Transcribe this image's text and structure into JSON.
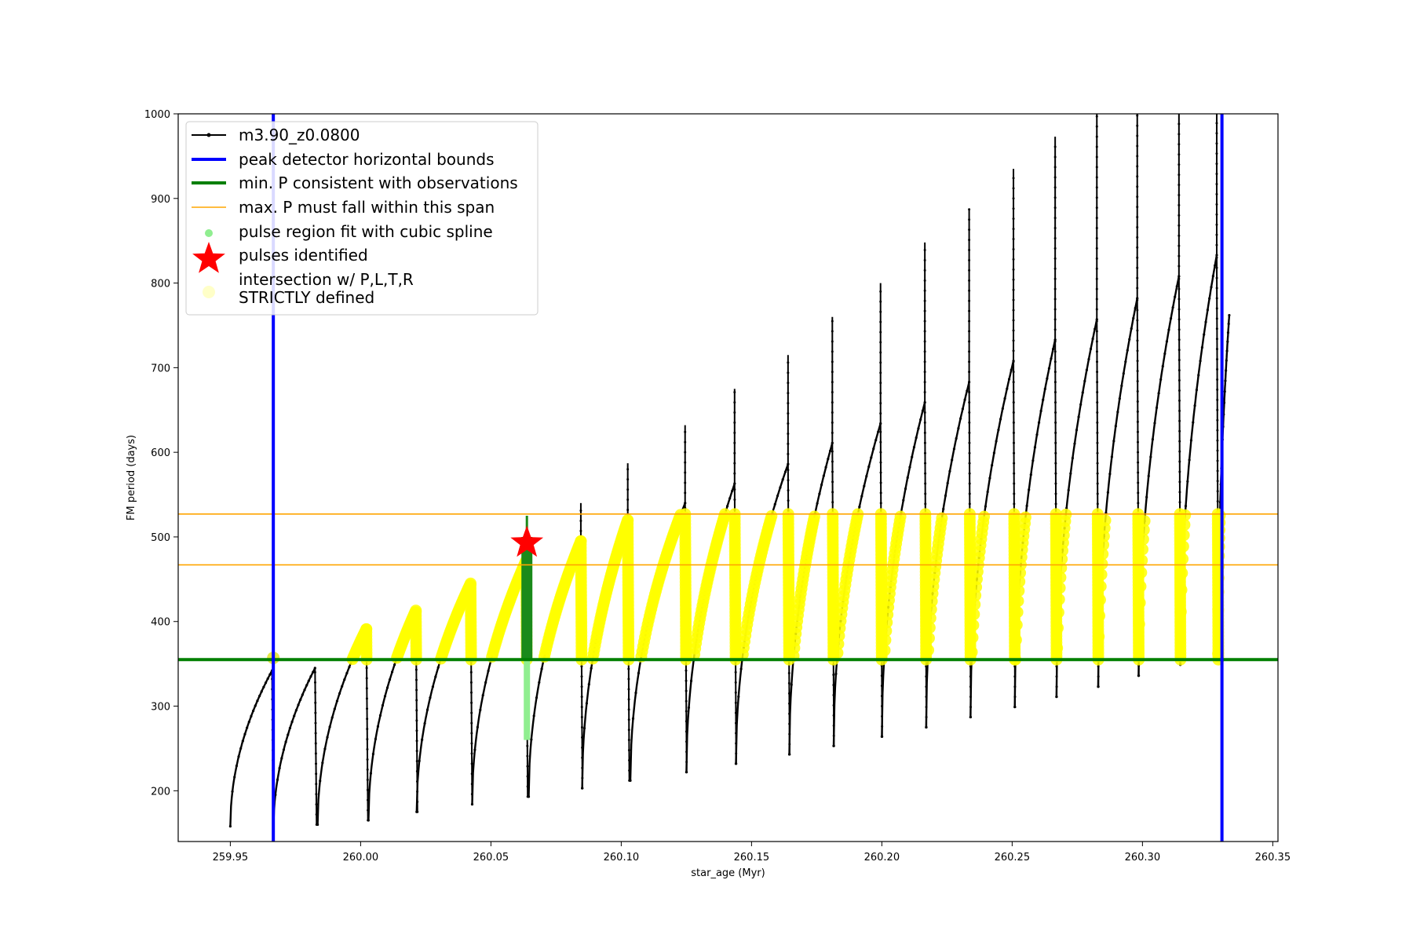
{
  "chart_data": {
    "type": "line",
    "xlabel": "star_age (Myr)",
    "ylabel": "FM period (days)",
    "xlim": [
      259.93,
      260.352
    ],
    "ylim": [
      140,
      1000
    ],
    "xticks": [
      259.95,
      260.0,
      260.05,
      260.1,
      260.15,
      260.2,
      260.25,
      260.3,
      260.35
    ],
    "xtick_labels": [
      "259.95",
      "260.00",
      "260.05",
      "260.10",
      "260.15",
      "260.20",
      "260.25",
      "260.30",
      "260.35"
    ],
    "yticks": [
      200,
      300,
      400,
      500,
      600,
      700,
      800,
      900,
      1000
    ],
    "ytick_labels": [
      "200",
      "300",
      "400",
      "500",
      "600",
      "700",
      "800",
      "900",
      "1000"
    ],
    "legend_placement": "upper-left",
    "colors": {
      "track": "#000000",
      "bounds": "#0000ff",
      "min_p": "#007f00",
      "max_p": "#ffa500",
      "spline": "#90ee90",
      "pulse": "#ff0000",
      "intersection": "#ffff00"
    },
    "legend": [
      {
        "label": "m3.90_z0.0800",
        "kind": "track"
      },
      {
        "label": "peak detector horizontal bounds",
        "kind": "bounds"
      },
      {
        "label": "min. P consistent with observations",
        "kind": "min_p"
      },
      {
        "label": "max. P must fall within this span",
        "kind": "max_p"
      },
      {
        "label": "pulse region fit with cubic spline",
        "kind": "spline"
      },
      {
        "label": "pulses identified",
        "kind": "pulse"
      },
      {
        "label": "intersection w/ P,L,T,R",
        "label2": "STRICTLY defined",
        "kind": "intersection"
      }
    ],
    "series_name": "m3.90_z0.0800",
    "vertical_bounds": [
      259.9665,
      260.3305
    ],
    "min_period": 355,
    "max_period_span": [
      467,
      527
    ],
    "pulse_identified": {
      "x": 260.0638,
      "y": 493
    },
    "spline_region": {
      "x": 260.0638,
      "ymin": 260,
      "ymax": 525
    },
    "pulse_cycles": [
      {
        "start": 259.95,
        "peak": 259.966,
        "peak_p": 342,
        "dip_p": 152,
        "spike_p": 0,
        "start_p": 158
      },
      {
        "start": 259.9665,
        "peak": 259.9825,
        "peak_p": 345,
        "dip_p": 160,
        "spike_p": 0,
        "start_p": 152
      },
      {
        "start": 259.9835,
        "peak": 260.0022,
        "peak_p": 391,
        "dip_p": 165,
        "spike_p": 0,
        "start_p": 160
      },
      {
        "start": 260.003,
        "peak": 260.0212,
        "peak_p": 413,
        "dip_p": 175,
        "spike_p": 0,
        "start_p": 165
      },
      {
        "start": 260.0215,
        "peak": 260.0422,
        "peak_p": 445,
        "dip_p": 184,
        "spike_p": 0,
        "start_p": 175
      },
      {
        "start": 260.0428,
        "peak": 260.0635,
        "peak_p": 472,
        "dip_p": 193,
        "spike_p": 0,
        "start_p": 184
      },
      {
        "start": 260.0645,
        "peak": 260.0845,
        "peak_p": 495,
        "dip_p": 203,
        "spike_p": 540,
        "start_p": 193
      },
      {
        "start": 260.085,
        "peak": 260.1025,
        "peak_p": 520,
        "dip_p": 212,
        "spike_p": 587,
        "start_p": 203
      },
      {
        "start": 260.1035,
        "peak": 260.1245,
        "peak_p": 540,
        "dip_p": 222,
        "spike_p": 632,
        "start_p": 212
      },
      {
        "start": 260.125,
        "peak": 260.1435,
        "peak_p": 563,
        "dip_p": 232,
        "spike_p": 675,
        "start_p": 222
      },
      {
        "start": 260.144,
        "peak": 260.164,
        "peak_p": 586,
        "dip_p": 243,
        "spike_p": 715,
        "start_p": 232
      },
      {
        "start": 260.1645,
        "peak": 260.181,
        "peak_p": 611,
        "dip_p": 253,
        "spike_p": 760,
        "start_p": 243
      },
      {
        "start": 260.1815,
        "peak": 260.1995,
        "peak_p": 634,
        "dip_p": 264,
        "spike_p": 800,
        "start_p": 253
      },
      {
        "start": 260.2,
        "peak": 260.2165,
        "peak_p": 659,
        "dip_p": 275,
        "spike_p": 848,
        "start_p": 264
      },
      {
        "start": 260.217,
        "peak": 260.2335,
        "peak_p": 683,
        "dip_p": 287,
        "spike_p": 888,
        "start_p": 275
      },
      {
        "start": 260.234,
        "peak": 260.2505,
        "peak_p": 708,
        "dip_p": 299,
        "spike_p": 935,
        "start_p": 287
      },
      {
        "start": 260.251,
        "peak": 260.2665,
        "peak_p": 733,
        "dip_p": 311,
        "spike_p": 973,
        "start_p": 299
      },
      {
        "start": 260.267,
        "peak": 260.2825,
        "peak_p": 757,
        "dip_p": 323,
        "spike_p": 1000,
        "start_p": 311
      },
      {
        "start": 260.283,
        "peak": 260.298,
        "peak_p": 782,
        "dip_p": 336,
        "spike_p": 1000,
        "start_p": 323
      },
      {
        "start": 260.2985,
        "peak": 260.314,
        "peak_p": 808,
        "dip_p": 349,
        "spike_p": 1000,
        "start_p": 336
      },
      {
        "start": 260.3145,
        "peak": 260.3285,
        "peak_p": 833,
        "dip_p": 362,
        "spike_p": 1000,
        "start_p": 349
      },
      {
        "start": 260.329,
        "peak": 260.3333,
        "peak_p": 762,
        "dip_p": 0,
        "spike_p": 0,
        "start_p": 362
      }
    ]
  }
}
